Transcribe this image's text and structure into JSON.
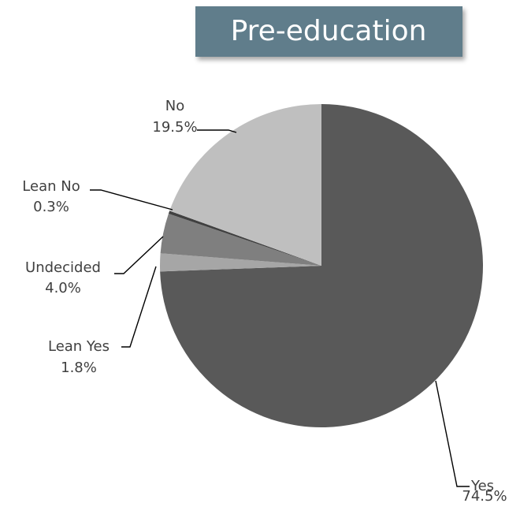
{
  "chart_data": {
    "type": "pie",
    "title": "Pre-education",
    "categories": [
      "Yes",
      "Lean Yes",
      "Undecided",
      "Lean No",
      "No"
    ],
    "values": [
      74.5,
      1.8,
      4.0,
      0.3,
      19.5
    ],
    "value_labels": [
      "74.5%",
      "1.8%",
      "4.0%",
      "0.3%",
      "19.5%"
    ],
    "colors": [
      "#595959",
      "#a6a6a6",
      "#7f7f7f",
      "#404040",
      "#bfbfbf"
    ]
  }
}
